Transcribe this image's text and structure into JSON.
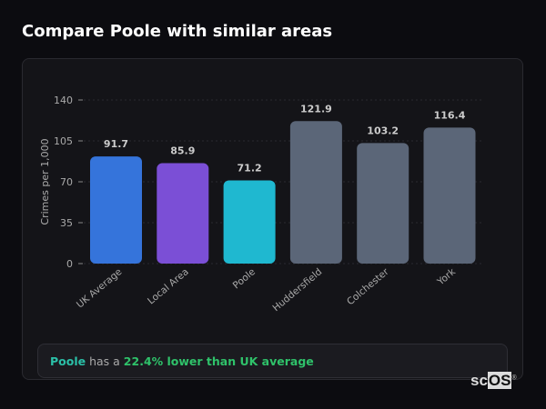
{
  "title": "Compare Poole with similar areas",
  "summary": {
    "area": "Poole",
    "middle": " has a ",
    "highlight": "22.4% lower than UK average"
  },
  "logo": {
    "text1": "sc",
    "text2": "OS"
  },
  "chart_data": {
    "type": "bar",
    "ylabel": "Crimes per 1,000",
    "xlabel": "",
    "ylim": [
      0,
      140
    ],
    "yticks": [
      0,
      35,
      70,
      105,
      140
    ],
    "grid": true,
    "categories": [
      "UK Average",
      "Local Area",
      "Poole",
      "Huddersfield",
      "Colchester",
      "York"
    ],
    "values": [
      91.7,
      85.9,
      71.2,
      121.9,
      103.2,
      116.4
    ],
    "colors": [
      "#3574db",
      "#7b4fd6",
      "#1fb8d0",
      "#5b6678",
      "#5b6678",
      "#5b6678"
    ]
  }
}
